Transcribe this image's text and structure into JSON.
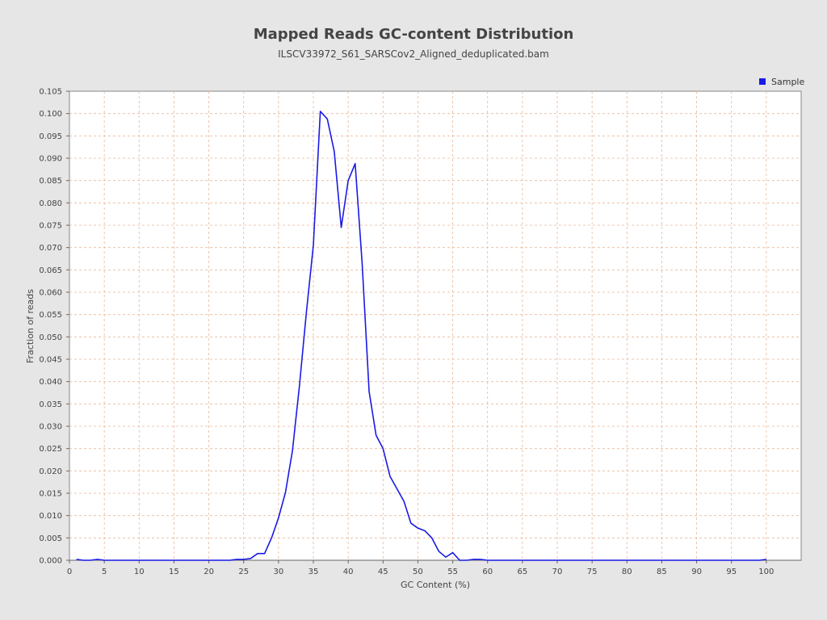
{
  "chart_data": {
    "type": "line",
    "title": "Mapped Reads GC-content Distribution",
    "subtitle": "ILSCV33972_S61_SARSCov2_Aligned_deduplicated.bam",
    "xlabel": "GC Content (%)",
    "ylabel": "Fraction of reads",
    "xlim": [
      0,
      105
    ],
    "ylim": [
      0,
      0.105
    ],
    "x_ticks": [
      "0",
      "5",
      "10",
      "15",
      "20",
      "25",
      "30",
      "35",
      "40",
      "45",
      "50",
      "55",
      "60",
      "65",
      "70",
      "75",
      "80",
      "85",
      "90",
      "95",
      "100"
    ],
    "y_ticks": [
      "0.000",
      "0.005",
      "0.010",
      "0.015",
      "0.020",
      "0.025",
      "0.030",
      "0.035",
      "0.040",
      "0.045",
      "0.050",
      "0.055",
      "0.060",
      "0.065",
      "0.070",
      "0.075",
      "0.080",
      "0.085",
      "0.090",
      "0.095",
      "0.100",
      "0.105"
    ],
    "grid": true,
    "legend": "top-right",
    "series": [
      {
        "name": "Sample",
        "color": "#1a1ae6",
        "x": [
          1,
          2,
          3,
          4,
          5,
          6,
          7,
          8,
          9,
          10,
          11,
          12,
          13,
          14,
          15,
          16,
          17,
          18,
          19,
          20,
          21,
          22,
          23,
          24,
          25,
          26,
          27,
          28,
          29,
          30,
          31,
          32,
          33,
          34,
          35,
          36,
          37,
          38,
          39,
          40,
          41,
          42,
          43,
          44,
          45,
          46,
          47,
          48,
          49,
          50,
          51,
          52,
          53,
          54,
          55,
          56,
          57,
          58,
          59,
          60,
          61,
          62,
          63,
          64,
          65,
          66,
          67,
          68,
          69,
          70,
          71,
          72,
          73,
          74,
          75,
          76,
          77,
          78,
          79,
          80,
          81,
          82,
          83,
          84,
          85,
          86,
          87,
          88,
          89,
          90,
          91,
          92,
          93,
          94,
          95,
          96,
          97,
          98,
          99,
          100
        ],
        "values": [
          0.0002,
          0.0,
          0.0,
          0.0002,
          0.0,
          0.0,
          0.0,
          0.0,
          0.0,
          0.0,
          0.0,
          0.0,
          0.0,
          0.0,
          0.0,
          0.0,
          0.0,
          0.0,
          0.0,
          0.0,
          0.0,
          0.0,
          0.0,
          0.0002,
          0.0002,
          0.0004,
          0.0015,
          0.0015,
          0.005,
          0.0095,
          0.0152,
          0.0245,
          0.039,
          0.0555,
          0.0705,
          0.1005,
          0.0988,
          0.0915,
          0.0745,
          0.085,
          0.0888,
          0.0665,
          0.0378,
          0.028,
          0.025,
          0.0188,
          0.016,
          0.0132,
          0.0083,
          0.0072,
          0.0066,
          0.005,
          0.002,
          0.0007,
          0.0017,
          0.0,
          0.0,
          0.0002,
          0.0002,
          0.0,
          0.0,
          0.0,
          0.0,
          0.0,
          0.0,
          0.0,
          0.0,
          0.0,
          0.0,
          0.0,
          0.0,
          0.0,
          0.0,
          0.0,
          0.0,
          0.0,
          0.0,
          0.0,
          0.0,
          0.0,
          0.0,
          0.0,
          0.0,
          0.0,
          0.0,
          0.0,
          0.0,
          0.0,
          0.0,
          0.0,
          0.0,
          0.0,
          0.0,
          0.0,
          0.0,
          0.0,
          0.0,
          0.0,
          0.0,
          0.0002
        ]
      }
    ]
  }
}
